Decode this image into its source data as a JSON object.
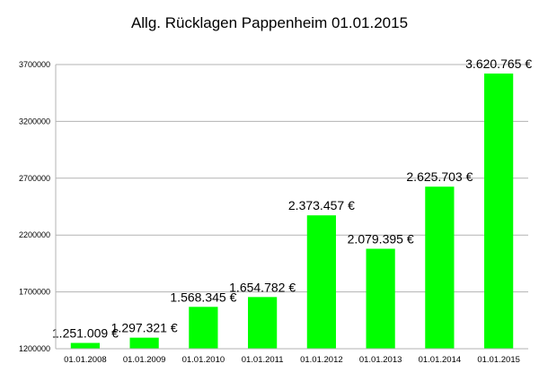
{
  "chart_data": {
    "type": "bar",
    "title": "Allg. Rücklagen Pappenheim 01.01.2015",
    "xlabel": "",
    "ylabel": "",
    "categories": [
      "01.01.2008",
      "01.01.2009",
      "01.01.2010",
      "01.01.2011",
      "01.01.2012",
      "01.01.2013",
      "01.01.2014",
      "01.01.2015"
    ],
    "values": [
      1251009,
      1297321,
      1568345,
      1654782,
      2373457,
      2079395,
      2625703,
      3620765
    ],
    "data_labels": [
      "1.251.009 €",
      "1.297.321 €",
      "1.568.345 €",
      "1.654.782 €",
      "2.373.457 €",
      "2.079.395 €",
      "2.625.703 €",
      "3.620.765 €"
    ],
    "ylim": [
      1200000,
      3700000
    ],
    "yticks": [
      1200000,
      1700000,
      2200000,
      2700000,
      3200000,
      3700000
    ],
    "ytick_labels": [
      "1200000",
      "1700000",
      "2200000",
      "2700000",
      "3200000",
      "3700000"
    ],
    "grid": true,
    "legend": "none",
    "bar_color": "#00ff00"
  }
}
